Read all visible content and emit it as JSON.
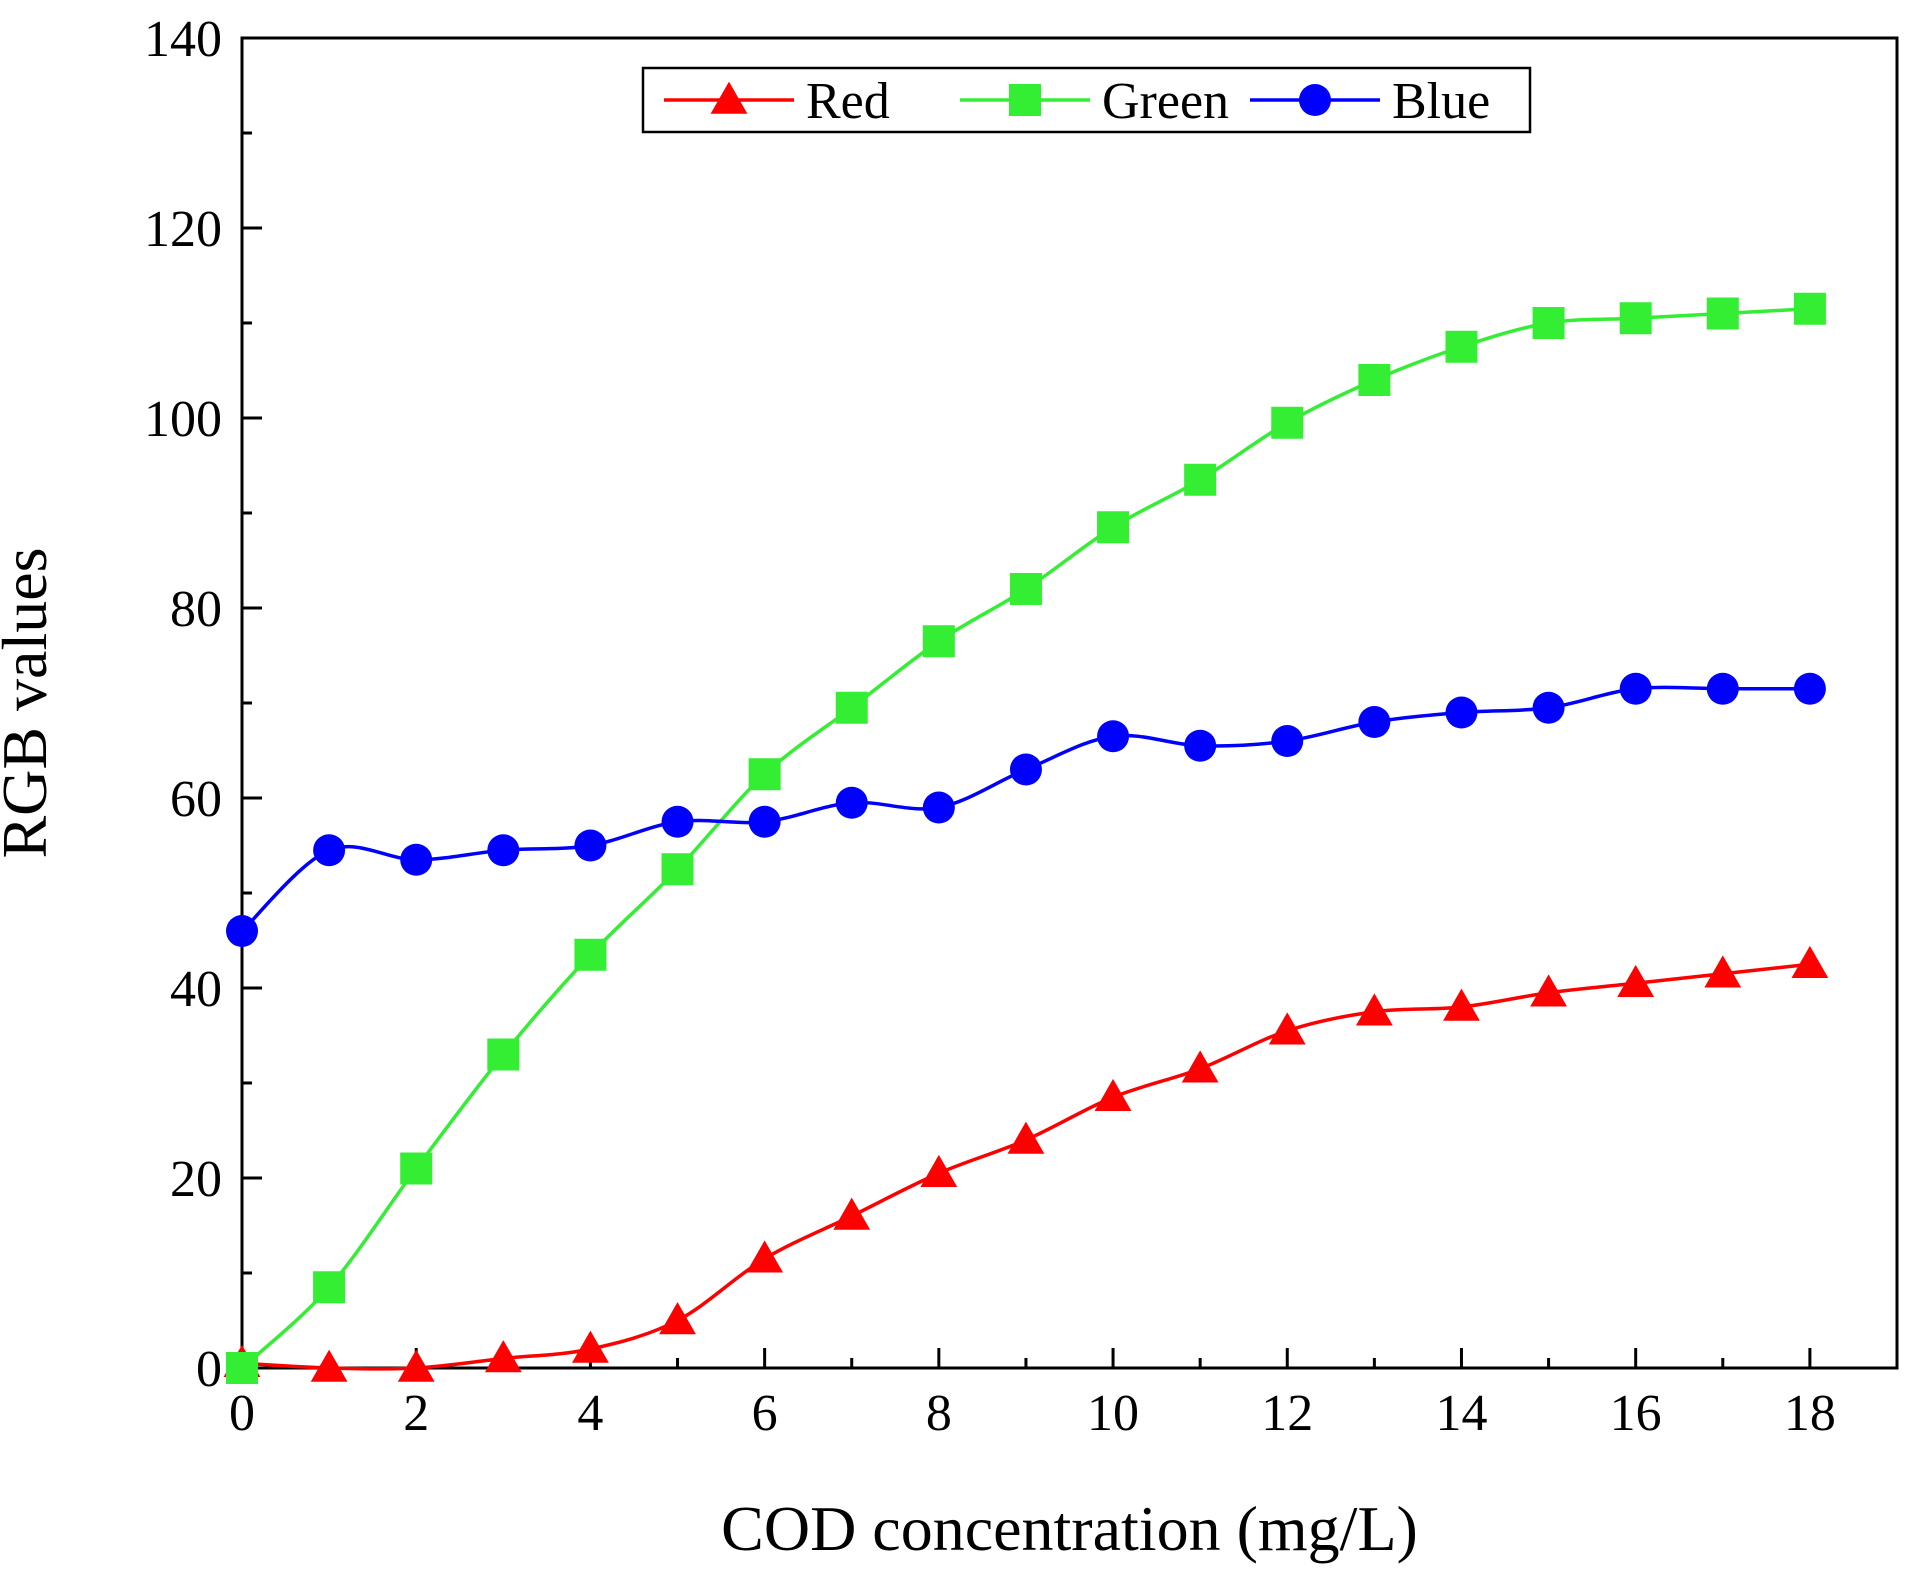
{
  "chart_data": {
    "type": "line",
    "title": "",
    "xlabel": "COD concentration (mg/L)",
    "ylabel": "RGB values",
    "xlim": [
      0,
      19
    ],
    "ylim": [
      0,
      140
    ],
    "xticks": [
      0,
      2,
      4,
      6,
      8,
      10,
      12,
      14,
      16,
      18
    ],
    "yticks": [
      0,
      20,
      40,
      60,
      80,
      100,
      120,
      140
    ],
    "grid": false,
    "legend_position": "top-center",
    "x": [
      0,
      1,
      2,
      3,
      4,
      5,
      6,
      7,
      8,
      9,
      10,
      11,
      12,
      13,
      14,
      15,
      16,
      17,
      18
    ],
    "series": [
      {
        "name": "Red",
        "color": "#ff0000",
        "marker": "triangle",
        "values": [
          0.5,
          0,
          0,
          1,
          2,
          5,
          11.5,
          16,
          20.5,
          24,
          28.5,
          31.5,
          35.5,
          37.5,
          38,
          39.5,
          40.5,
          41.5,
          42.5
        ]
      },
      {
        "name": "Green",
        "color": "#33ee33",
        "marker": "square",
        "values": [
          0,
          8.5,
          21,
          33,
          43.5,
          52.5,
          62.5,
          69.5,
          76.5,
          82,
          88.5,
          93.5,
          99.5,
          104,
          107.5,
          110,
          110.5,
          111,
          111.5
        ]
      },
      {
        "name": "Blue",
        "color": "#0000ff",
        "marker": "circle",
        "values": [
          46,
          54.5,
          53.5,
          54.5,
          55,
          57.5,
          57.5,
          59.5,
          59,
          63,
          66.5,
          65.5,
          66,
          68,
          69,
          69.5,
          71.5,
          71.5,
          71.5
        ]
      }
    ]
  }
}
